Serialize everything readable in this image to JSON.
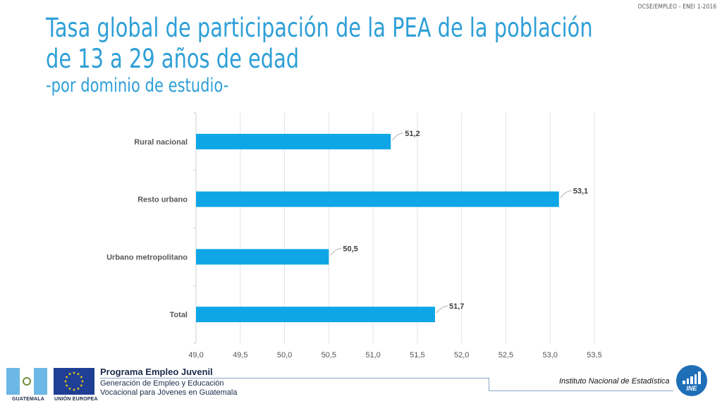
{
  "header_tag": "OCSE/EMPLEO -  ENEI 1-2016",
  "title": {
    "main": "Tasa global de participación de la PEA de la población de 13 a 29 años de edad",
    "sub": "-por dominio de estudio-"
  },
  "chart_data": {
    "type": "bar",
    "orientation": "horizontal",
    "categories": [
      "Rural nacional",
      "Resto urbano",
      "Urbano metropolitano",
      "Total"
    ],
    "values": [
      51.2,
      53.1,
      50.5,
      51.7
    ],
    "value_labels": [
      "51,2",
      "53,1",
      "50,5",
      "51,7"
    ],
    "xlim": [
      49.0,
      53.5
    ],
    "xticks": [
      "49,0",
      "49,5",
      "50,0",
      "50,5",
      "51,0",
      "51,5",
      "52,0",
      "52,5",
      "53,0",
      "53,5"
    ],
    "grid": true,
    "bar_color": "#0fa6e6"
  },
  "footer": {
    "flag_gt_label": "GUATEMALA",
    "flag_eu_label": "UNIÓN EUROPEA",
    "program_title": "Programa Empleo Juvenil",
    "program_line1": "Generación de Empleo y Educación",
    "program_line2": "Vocacional para Jóvenes en Guatemala",
    "institute": "Instituto Nacional de Estadística",
    "logo_text": "INE"
  }
}
